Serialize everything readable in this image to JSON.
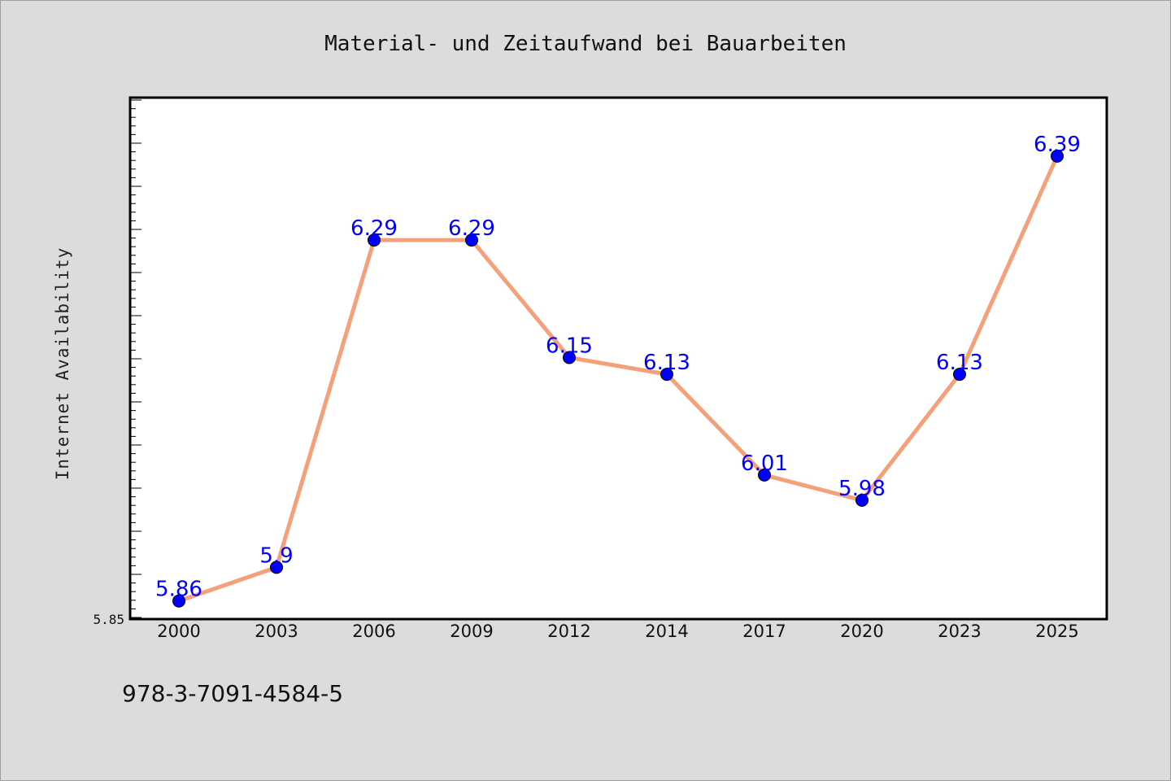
{
  "chart_data": {
    "type": "line",
    "title": "Material- und Zeitaufwand bei Bauarbeiten",
    "xlabel": "",
    "ylabel": "Internet Availability",
    "categories": [
      "2000",
      "2003",
      "2006",
      "2009",
      "2012",
      "2014",
      "2017",
      "2020",
      "2023",
      "2025"
    ],
    "series": [
      {
        "values": [
          5.86,
          5.9,
          6.29,
          6.29,
          6.15,
          6.13,
          6.01,
          5.98,
          6.13,
          6.39
        ],
        "data_labels": [
          "5.86",
          "5.9",
          "6.29",
          "6.29",
          "6.15",
          "6.13",
          "6.01",
          "5.98",
          "6.13",
          "6.39"
        ]
      }
    ],
    "y_tick_label": "5.85",
    "ylim": [
      5.85,
      6.45
    ],
    "grid": false,
    "legend": "none",
    "colors": {
      "line": "#f4a07a",
      "marker": "#0000ff",
      "data_label": "#0000ff",
      "plot_background": "#ffffff",
      "figure_background": "#dcdcdc"
    }
  },
  "footer": {
    "text": "978-3-7091-4584-5"
  }
}
